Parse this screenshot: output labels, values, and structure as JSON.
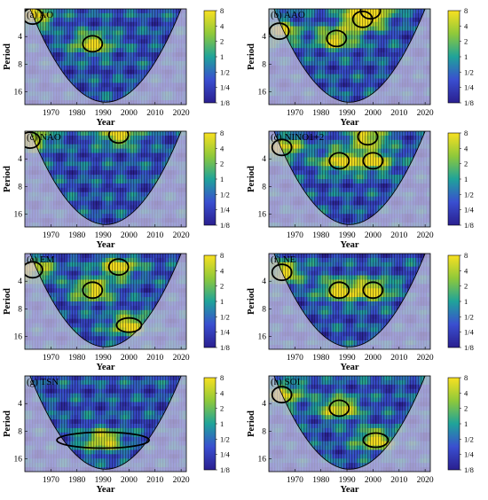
{
  "figure": {
    "x_axis_label": "Year",
    "y_axis_label": "Period",
    "x_ticks": [
      1970,
      1980,
      1990,
      2000,
      2010,
      2020
    ],
    "x_range": [
      1960,
      2022
    ],
    "y_ticks": [
      4,
      8,
      16
    ],
    "y_range": [
      2,
      22
    ],
    "y_scale": "log2",
    "colorbar_ticks": [
      "8",
      "4",
      "2",
      "1",
      "1/2",
      "1/4",
      "1/8"
    ],
    "colors": {
      "low_power": "#2a1f8f",
      "mid_power": "#1fa39a",
      "high_power": "#f5d424",
      "cone_shade": "#c8c0de",
      "contour": "#000000",
      "coi_line": "#000000"
    }
  },
  "chart_data": [
    {
      "type": "heatmap",
      "title": "(a) AO",
      "xlabel": "Year",
      "ylabel": "Period",
      "significant_regions": [
        {
          "year": 1963,
          "period": 2.4
        },
        {
          "year": 1986,
          "period": 4.8
        }
      ]
    },
    {
      "type": "heatmap",
      "title": "(b) AAO",
      "xlabel": "Year",
      "ylabel": "Period",
      "significant_regions": [
        {
          "year": 1996,
          "period": 2.6
        },
        {
          "year": 1999,
          "period": 2.1
        },
        {
          "year": 1986,
          "period": 4.2
        },
        {
          "year": 1964,
          "period": 3.5
        }
      ]
    },
    {
      "type": "heatmap",
      "title": "(c) NAO",
      "xlabel": "Year",
      "ylabel": "Period",
      "significant_regions": [
        {
          "year": 1962,
          "period": 2.5
        },
        {
          "year": 1996,
          "period": 2.2
        }
      ]
    },
    {
      "type": "heatmap",
      "title": "(d) NINO1+2",
      "xlabel": "Year",
      "ylabel": "Period",
      "significant_regions": [
        {
          "year": 1965,
          "period": 3.0
        },
        {
          "year": 1987,
          "period": 4.2
        },
        {
          "year": 1998,
          "period": 2.3
        },
        {
          "year": 2000,
          "period": 4.2
        }
      ]
    },
    {
      "type": "heatmap",
      "title": "(e) EM",
      "xlabel": "Year",
      "ylabel": "Period",
      "significant_regions": [
        {
          "year": 1963,
          "period": 3.0
        },
        {
          "year": 1986,
          "period": 5.0
        },
        {
          "year": 1996,
          "period": 2.8
        },
        {
          "year": 2000,
          "period": 12.0
        }
      ]
    },
    {
      "type": "heatmap",
      "title": "(f) NE",
      "xlabel": "Year",
      "ylabel": "Period",
      "significant_regions": [
        {
          "year": 1965,
          "period": 3.2
        },
        {
          "year": 1987,
          "period": 5.0
        },
        {
          "year": 2000,
          "period": 5.0
        }
      ]
    },
    {
      "type": "heatmap",
      "title": "(g) TSN",
      "xlabel": "Year",
      "ylabel": "Period",
      "significant_regions": [
        {
          "year": 1990,
          "period": 10.0
        }
      ]
    },
    {
      "type": "heatmap",
      "title": "(h) SOI",
      "xlabel": "Year",
      "ylabel": "Period",
      "significant_regions": [
        {
          "year": 1965,
          "period": 3.2
        },
        {
          "year": 1987,
          "period": 4.5
        },
        {
          "year": 2001,
          "period": 10.0
        }
      ]
    }
  ]
}
